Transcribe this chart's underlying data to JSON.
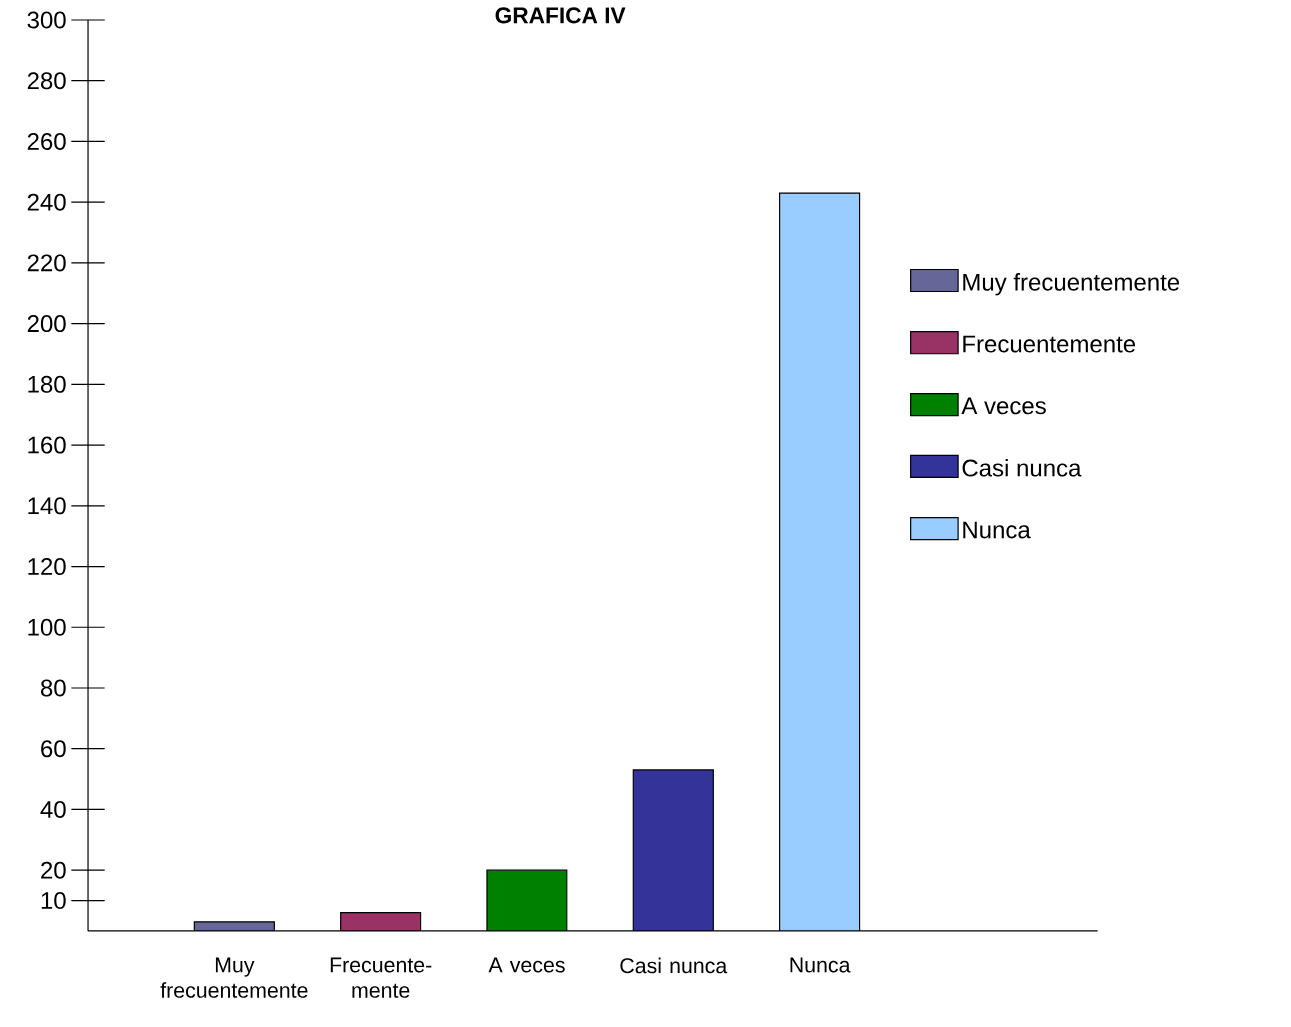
{
  "chart_data": {
    "type": "bar",
    "title": "GRAFICA IV",
    "categories": [
      "Muy frecuentemente",
      "Frecuente- mente",
      "A veces",
      "Casi nunca",
      "Nunca"
    ],
    "series": [
      {
        "name": "Muy frecuentemente",
        "color": "#666699",
        "values": [
          3,
          null,
          null,
          null,
          null
        ]
      },
      {
        "name": "Frecuentemente",
        "color": "#993366",
        "values": [
          null,
          6,
          null,
          null,
          null
        ]
      },
      {
        "name": "A veces",
        "color": "#008000",
        "values": [
          null,
          null,
          20,
          null,
          null
        ]
      },
      {
        "name": "Casi nunca",
        "color": "#333399",
        "values": [
          null,
          null,
          null,
          53,
          null
        ]
      },
      {
        "name": "Nunca",
        "color": "#99ccff",
        "values": [
          null,
          null,
          null,
          null,
          243
        ]
      }
    ],
    "ylim": [
      0,
      300
    ],
    "yticks": [
      10,
      20,
      40,
      60,
      80,
      100,
      120,
      140,
      160,
      180,
      200,
      220,
      240,
      260,
      280,
      300
    ],
    "grid": false,
    "legend": "right"
  }
}
